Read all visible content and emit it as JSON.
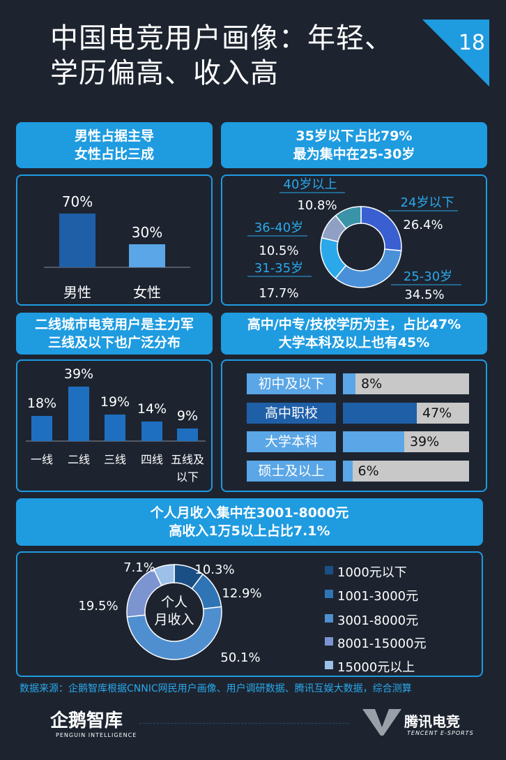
{
  "header": {
    "title": "中国电竞用户画像：年轻、学历偏高、收入高",
    "page_number": "18"
  },
  "gender": {
    "heading_line1": "男性占据主导",
    "heading_line2": "女性占比三成"
  },
  "age": {
    "heading_line1": "35岁以下占比79%",
    "heading_line2": "最为集中在25-30岁"
  },
  "city": {
    "heading_line1": "二线城市电竞用户是主力军",
    "heading_line2": "三线及以下也广泛分布"
  },
  "education": {
    "heading_line1": "高中/中专/技校学历为主，占比47%",
    "heading_line2": "大学本科及以上也有45%"
  },
  "income": {
    "heading_line1": "个人月收入集中在3001-8000元",
    "heading_line2": "高收入1万5以上占比7.1%",
    "center_line1": "个人",
    "center_line2": "月收入"
  },
  "chart_data": [
    {
      "type": "bar",
      "categories": [
        "男性",
        "女性"
      ],
      "values": [
        70,
        30
      ],
      "value_labels": [
        "70%",
        "30%"
      ],
      "ylim": [
        0,
        100
      ],
      "colors": [
        "#1f5fa8",
        "#5aa6e6"
      ]
    },
    {
      "type": "pie",
      "variant": "donut",
      "categories": [
        "24岁以下",
        "25-30岁",
        "31-35岁",
        "36-40岁",
        "40岁以上"
      ],
      "values": [
        26.4,
        34.5,
        17.7,
        10.5,
        10.8
      ],
      "value_labels": [
        "26.4%",
        "34.5%",
        "17.7%",
        "10.5%",
        "10.8%"
      ],
      "colors": [
        "#3a5fd0",
        "#4a90d9",
        "#2aa8ea",
        "#8fa0c4",
        "#3b93a8"
      ]
    },
    {
      "type": "bar",
      "categories": [
        "一线",
        "二线",
        "三线",
        "四线",
        "五线及以下"
      ],
      "category_lines": [
        [
          "一线"
        ],
        [
          "二线"
        ],
        [
          "三线"
        ],
        [
          "四线"
        ],
        [
          "五线及",
          "以下"
        ]
      ],
      "values": [
        18,
        39,
        19,
        14,
        9
      ],
      "value_labels": [
        "18%",
        "39%",
        "19%",
        "14%",
        "9%"
      ],
      "ylim": [
        0,
        45
      ],
      "colors": [
        "#1f6fc0"
      ]
    },
    {
      "type": "bar",
      "orientation": "horizontal",
      "categories": [
        "初中及以下",
        "高中职校",
        "大学本科",
        "硕士及以上"
      ],
      "values": [
        8,
        47,
        39,
        6
      ],
      "value_labels": [
        "8%",
        "47%",
        "39%",
        "6%"
      ],
      "xlim": [
        0,
        100
      ],
      "colors": [
        "#5aa6e6",
        "#1f5fa8",
        "#5aa6e6",
        "#5aa6e6"
      ]
    },
    {
      "type": "pie",
      "variant": "donut",
      "categories": [
        "1000元以下",
        "1001-3000元",
        "3001-8000元",
        "8001-15000元",
        "15000元以上"
      ],
      "values": [
        10.3,
        12.9,
        50.1,
        19.5,
        7.1
      ],
      "value_labels": [
        "10.3%",
        "12.9%",
        "50.1%",
        "19.5%",
        "7.1%"
      ],
      "colors": [
        "#1a4f85",
        "#2f74b5",
        "#4f8fd0",
        "#7c94cf",
        "#9cc0e8"
      ]
    }
  ],
  "footer": {
    "source": "数据来源：企鹅智库根据CNNIC网民用户画像、用户调研数据、腾讯互娱大数据，综合测算",
    "logo_left": "企鹅智库",
    "logo_left_sub": "PENGUIN INTELLIGENCE",
    "logo_right": "腾讯电竞",
    "logo_right_sub": "TENCENT E-SPORTS"
  }
}
